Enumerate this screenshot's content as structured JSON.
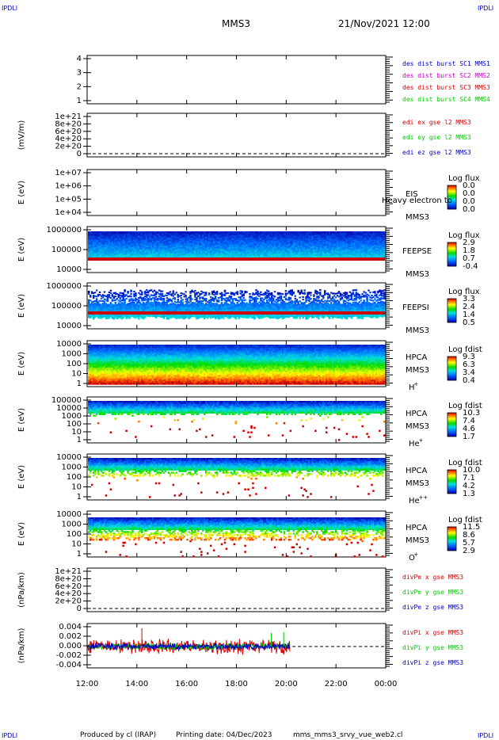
{
  "corner_labels": [
    "IPDLI",
    "IPDLI",
    "IPDLI",
    "IPDLI"
  ],
  "header": {
    "spacecraft": "MMS3",
    "datetime": "21/Nov/2021 12:00"
  },
  "footer": {
    "produced_by": "Produced by cl (IRAP)",
    "printing_date": "Printing date: 04/Dec/2023",
    "script": "mms_mms3_srvy_vue_web2.cl"
  },
  "time_axis": {
    "ticks": [
      "12:00",
      "14:00",
      "16:00",
      "18:00",
      "20:00",
      "22:00",
      "00:00"
    ],
    "range_hours": [
      12,
      24
    ]
  },
  "colors": {
    "blue": "#0000cc",
    "magenta": "#cc00cc",
    "red": "#dd0000",
    "green": "#00cc00"
  },
  "chart_data": [
    {
      "type": "line",
      "id": "p1",
      "ylabel": "",
      "ylim": [
        0.5,
        4.5
      ],
      "yticks": [
        "4",
        "3",
        "2",
        "1"
      ],
      "legend": [
        {
          "label": "des dist burst SC1 MMS1",
          "color": "#0000cc"
        },
        {
          "label": "des dist burst SC2 MMS2",
          "color": "#cc00cc"
        },
        {
          "label": "des dist burst SC3 MMS3",
          "color": "#dd0000"
        },
        {
          "label": "des dist burst SC4 MMS4",
          "color": "#00cc00"
        }
      ]
    },
    {
      "type": "line",
      "id": "p2",
      "ylabel": "(mV/m)",
      "ylim": [
        0,
        1e+21
      ],
      "yticks": [
        "1e+21",
        "8e+20",
        "6e+20",
        "4e+20",
        "2e+20",
        "0"
      ],
      "zero_line": true,
      "legend": [
        {
          "label": "edi ex gse l2 MMS3",
          "color": "#dd0000"
        },
        {
          "label": "edi ey gse l2 MMS3",
          "color": "#00cc00"
        },
        {
          "label": "edi ez gse l2 MMS3",
          "color": "#0000cc"
        }
      ]
    },
    {
      "type": "heatmap",
      "id": "p3",
      "ylabel": "E (eV)",
      "yticks": [
        "1e+07",
        "1e+06",
        "1e+05",
        "1e+04"
      ],
      "instrument": [
        "EIS",
        "MMS3"
      ],
      "overlay": "Heavy electron to",
      "colorbar": {
        "title": "Log flux",
        "ticks": [
          "0.0",
          "0.0",
          "0.0",
          "0.0"
        ]
      }
    },
    {
      "type": "heatmap",
      "id": "p4",
      "ylabel": "E (eV)",
      "yticks": [
        "1000000",
        "100000",
        "10000"
      ],
      "instrument": [
        "FEEPSE",
        "MMS3"
      ],
      "colorbar": {
        "title": "Log flux",
        "ticks": [
          "2.9",
          "1.8",
          "0.7",
          "-0.4"
        ]
      }
    },
    {
      "type": "heatmap",
      "id": "p5",
      "ylabel": "E (eV)",
      "yticks": [
        "1000000",
        "100000",
        "10000"
      ],
      "instrument": [
        "FEEPSI",
        "MMS3"
      ],
      "colorbar": {
        "title": "Log flux",
        "ticks": [
          "3.3",
          "2.4",
          "1.4",
          "0.5"
        ]
      }
    },
    {
      "type": "heatmap",
      "id": "p6",
      "ylabel": "E (eV)",
      "yticks": [
        "10000",
        "1000",
        "100",
        "10",
        "1"
      ],
      "instrument": [
        "HPCA",
        "MMS3"
      ],
      "species": "H",
      "charge": "+",
      "colorbar": {
        "title": "Log fdist",
        "ticks": [
          "9.3",
          "6.3",
          "3.4",
          "0.4"
        ]
      }
    },
    {
      "type": "heatmap",
      "id": "p7",
      "ylabel": "E (eV)",
      "yticks": [
        "100000",
        "10000",
        "1000",
        "100",
        "10",
        "1"
      ],
      "instrument": [
        "HPCA",
        "MMS3"
      ],
      "species": "He",
      "charge": "+",
      "colorbar": {
        "title": "Log fdist",
        "ticks": [
          "10.3",
          "7.4",
          "4.6",
          "1.7"
        ]
      }
    },
    {
      "type": "heatmap",
      "id": "p8",
      "ylabel": "E (eV)",
      "yticks": [
        "10000",
        "1000",
        "100",
        "10",
        "1"
      ],
      "instrument": [
        "HPCA",
        "MMS3"
      ],
      "species": "He",
      "charge": "++",
      "colorbar": {
        "title": "Log fdist",
        "ticks": [
          "10.0",
          "7.1",
          "4.2",
          "1.3"
        ]
      }
    },
    {
      "type": "heatmap",
      "id": "p9",
      "ylabel": "E (eV)",
      "yticks": [
        "10000",
        "1000",
        "100",
        "10",
        "1"
      ],
      "instrument": [
        "HPCA",
        "MMS3"
      ],
      "species": "O",
      "charge": "+",
      "colorbar": {
        "title": "Log fdist",
        "ticks": [
          "11.5",
          "8.6",
          "5.7",
          "2.9"
        ]
      }
    },
    {
      "type": "line",
      "id": "p10",
      "ylabel": "(nPa/km)",
      "ylim": [
        0,
        1e+21
      ],
      "yticks": [
        "1e+21",
        "8e+20",
        "6e+20",
        "4e+20",
        "2e+20",
        "0"
      ],
      "zero_line": true,
      "legend": [
        {
          "label": "divPe x gse MMS3",
          "color": "#dd0000"
        },
        {
          "label": "divPe y gse MMS3",
          "color": "#00cc00"
        },
        {
          "label": "divPe z gse MMS3",
          "color": "#0000cc"
        }
      ]
    },
    {
      "type": "line",
      "id": "p11",
      "ylabel": "(nPa/km)",
      "ylim": [
        -0.005,
        0.005
      ],
      "yticks": [
        "0.004",
        "0.002",
        "0.000",
        "-0.002",
        "-0.004"
      ],
      "zero_line": true,
      "data_end_hour": 20.15,
      "legend": [
        {
          "label": "divPi x gse MMS3",
          "color": "#dd0000"
        },
        {
          "label": "divPi y gse MMS3",
          "color": "#00cc00"
        },
        {
          "label": "divPi z gse MMS3",
          "color": "#0000cc"
        }
      ]
    }
  ]
}
